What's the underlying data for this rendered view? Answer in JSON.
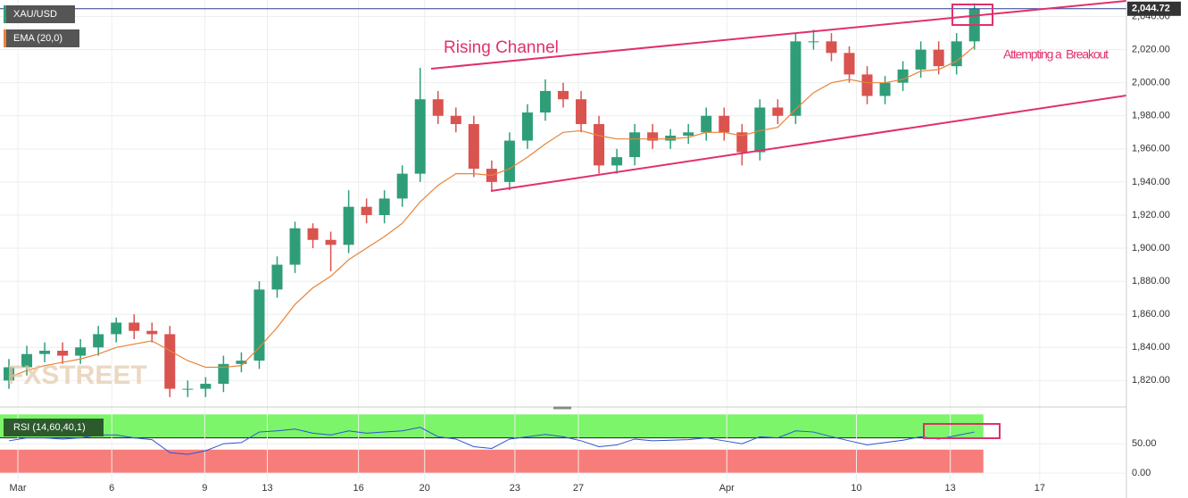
{
  "chart_data": [
    {
      "type": "candlestick",
      "title": "XAU/USD",
      "x": [
        0,
        1,
        2,
        3,
        4,
        5,
        6,
        7,
        8,
        9,
        10,
        11,
        12,
        13,
        14,
        15,
        16,
        17,
        18,
        19,
        20,
        21,
        22,
        23,
        24,
        25,
        26,
        27,
        28,
        29,
        30,
        31,
        32,
        33,
        34,
        35,
        36,
        37,
        38,
        39,
        40,
        41,
        42,
        43,
        44,
        45,
        46,
        47,
        48,
        49,
        50,
        51,
        52,
        53,
        54
      ],
      "open": [
        1820,
        1828,
        1836,
        1838,
        1835,
        1840,
        1848,
        1855,
        1850,
        1848,
        1815,
        1815,
        1818,
        1830,
        1832,
        1875,
        1890,
        1912,
        1905,
        1902,
        1925,
        1920,
        1930,
        1945,
        1990,
        1980,
        1975,
        1948,
        1940,
        1965,
        1982,
        1995,
        1990,
        1975,
        1950,
        1955,
        1970,
        1965,
        1968,
        1970,
        1980,
        1970,
        1958,
        1985,
        1980,
        2025,
        2025,
        2018,
        2005,
        1992,
        2000,
        2008,
        2020,
        2010,
        2025
      ],
      "high": [
        1833,
        1841,
        1843,
        1843,
        1845,
        1853,
        1858,
        1860,
        1855,
        1853,
        1820,
        1822,
        1835,
        1837,
        1880,
        1895,
        1916,
        1915,
        1910,
        1935,
        1930,
        1935,
        1950,
        2009,
        1995,
        1985,
        1980,
        1953,
        1970,
        1987,
        2002,
        2000,
        1995,
        1980,
        1960,
        1975,
        1975,
        1972,
        1975,
        1985,
        1985,
        1975,
        1990,
        1990,
        2030,
        2032,
        2030,
        2022,
        2010,
        2004,
        2013,
        2025,
        2025,
        2030,
        2048
      ],
      "low": [
        1815,
        1823,
        1831,
        1830,
        1830,
        1835,
        1843,
        1845,
        1843,
        1810,
        1810,
        1810,
        1813,
        1825,
        1827,
        1870,
        1885,
        1900,
        1886,
        1897,
        1915,
        1915,
        1925,
        1940,
        1975,
        1970,
        1943,
        1935,
        1935,
        1960,
        1977,
        1985,
        1970,
        1945,
        1945,
        1950,
        1960,
        1960,
        1963,
        1965,
        1965,
        1950,
        1953,
        1975,
        1975,
        2020,
        2013,
        2000,
        1987,
        1987,
        1995,
        2003,
        2005,
        2005,
        2020
      ],
      "close": [
        1828,
        1836,
        1838,
        1835,
        1840,
        1848,
        1855,
        1850,
        1848,
        1815,
        1815,
        1818,
        1830,
        1832,
        1875,
        1890,
        1912,
        1905,
        1902,
        1925,
        1920,
        1930,
        1945,
        1990,
        1980,
        1975,
        1948,
        1940,
        1965,
        1982,
        1995,
        1990,
        1975,
        1950,
        1955,
        1970,
        1965,
        1968,
        1970,
        1980,
        1970,
        1958,
        1985,
        1980,
        2025,
        2025,
        2018,
        2005,
        1992,
        2000,
        2008,
        2020,
        2010,
        2025,
        2044.72
      ],
      "up_color": "#2f9e78",
      "down_color": "#d9534f",
      "overlays": [
        {
          "name": "EMA (20,0)",
          "color": "#e8833a",
          "values": [
            1822,
            1826,
            1829,
            1831,
            1833,
            1836,
            1840,
            1842,
            1844,
            1838,
            1832,
            1828,
            1828,
            1829,
            1840,
            1852,
            1866,
            1876,
            1883,
            1893,
            1900,
            1907,
            1915,
            1928,
            1938,
            1945,
            1945,
            1944,
            1948,
            1955,
            1963,
            1970,
            1971,
            1968,
            1966,
            1966,
            1966,
            1966,
            1967,
            1970,
            1970,
            1968,
            1971,
            1973,
            1984,
            1994,
            2000,
            2002,
            2000,
            2000,
            2002,
            2007,
            2008,
            2013,
            2022
          ]
        }
      ],
      "last_price": {
        "value": 2044.72,
        "label": "2,044.72"
      },
      "xlim": [
        -0.5,
        62.5
      ],
      "ylim": [
        1804,
        2050
      ],
      "yticks": [
        {
          "value": 1820,
          "label": "1,820.00"
        },
        {
          "value": 1840,
          "label": "1,840.00"
        },
        {
          "value": 1860,
          "label": "1,860.00"
        },
        {
          "value": 1880,
          "label": "1,880.00"
        },
        {
          "value": 1900,
          "label": "1,900.00"
        },
        {
          "value": 1920,
          "label": "1,920.00"
        },
        {
          "value": 1940,
          "label": "1,940.00"
        },
        {
          "value": 1960,
          "label": "1,960.00"
        },
        {
          "value": 1980,
          "label": "1,980.00"
        },
        {
          "value": 2000,
          "label": "2,000.00"
        },
        {
          "value": 2020,
          "label": "2,020.00"
        },
        {
          "value": 2040,
          "label": "2,040.00"
        }
      ],
      "grid": true,
      "annotations": [
        "Rising Channel",
        "Attempting a  Breakout"
      ],
      "watermark": "FXSTREET"
    },
    {
      "type": "line",
      "title": "RSI (14,60,40,1)",
      "color": "#2a54d8",
      "values": [
        55,
        60,
        60,
        58,
        60,
        65,
        65,
        60,
        57,
        35,
        32,
        38,
        50,
        52,
        70,
        72,
        75,
        68,
        65,
        72,
        68,
        70,
        72,
        78,
        62,
        58,
        45,
        42,
        58,
        62,
        66,
        62,
        55,
        45,
        48,
        58,
        55,
        56,
        57,
        60,
        55,
        50,
        62,
        60,
        72,
        70,
        62,
        55,
        48,
        52,
        56,
        62,
        58,
        64,
        70
      ],
      "upper_band": 60,
      "lower_band": 40,
      "upper_color": "#7cf56a",
      "lower_color": "#f77d7a",
      "ylim": [
        -15,
        102
      ],
      "yticks": [
        {
          "value": 0,
          "label": "0.00"
        },
        {
          "value": 50,
          "label": "50.00"
        }
      ],
      "xticks": [
        {
          "value": 0.5,
          "label": "Mar"
        },
        {
          "value": 5.75,
          "label": "6"
        },
        {
          "value": 10.95,
          "label": "9"
        },
        {
          "value": 14.45,
          "label": "13"
        },
        {
          "value": 19.55,
          "label": "16"
        },
        {
          "value": 23.25,
          "label": "20"
        },
        {
          "value": 28.3,
          "label": "23"
        },
        {
          "value": 31.85,
          "label": "27"
        },
        {
          "value": 40.15,
          "label": "Apr"
        },
        {
          "value": 47.4,
          "label": "10"
        },
        {
          "value": 52.65,
          "label": "13"
        },
        {
          "value": 57.65,
          "label": "17"
        }
      ]
    }
  ]
}
